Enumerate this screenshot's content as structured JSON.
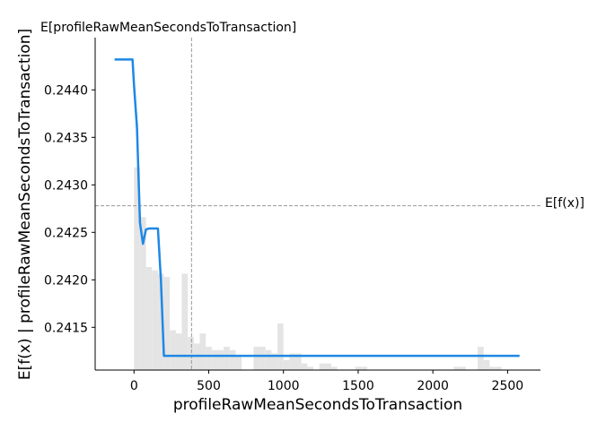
{
  "chart_data": {
    "type": "line",
    "title": "",
    "xlabel": "profileRawMeanSecondsToTransaction",
    "ylabel": "E[f(x) | profileRawMeanSecondsToTransaction]",
    "top_label": "E[profileRawMeanSecondsToTransaction]",
    "expected_value_label": "E[f(x)]",
    "xlim": [
      -260,
      2720
    ],
    "ylim": [
      0.24105,
      0.24455
    ],
    "x_ticks": [
      0,
      500,
      1000,
      1500,
      2000,
      2500
    ],
    "x_tick_labels": [
      "0",
      "500",
      "1000",
      "1500",
      "2000",
      "2500"
    ],
    "y_ticks": [
      0.2415,
      0.242,
      0.2425,
      0.243,
      0.2435,
      0.244
    ],
    "y_tick_labels": [
      "0.2415",
      "0.2420",
      "0.2425",
      "0.2430",
      "0.2435",
      "0.2440"
    ],
    "expected_feature_value": 385,
    "expected_output_value": 0.24278,
    "grid": false,
    "colors": {
      "line": "#1e88e5",
      "histogram": "#e4e4e4",
      "reference": "#999999",
      "axis": "#000000"
    },
    "series": [
      {
        "x": [
          -130,
          -70,
          -10,
          0,
          20,
          40,
          60,
          80,
          100,
          120,
          140,
          160,
          180,
          200,
          220,
          240,
          300,
          400,
          500,
          1000,
          1500,
          2000,
          2580
        ],
        "y": [
          0.24432,
          0.24432,
          0.24432,
          0.24405,
          0.2436,
          0.2426,
          0.24238,
          0.24253,
          0.24254,
          0.24254,
          0.24254,
          0.24254,
          0.242,
          0.2412,
          0.2412,
          0.2412,
          0.2412,
          0.2412,
          0.2412,
          0.2412,
          0.2412,
          0.2412,
          0.2412
        ]
      }
    ],
    "histogram": {
      "bin_starts": [
        0,
        40,
        80,
        120,
        160,
        200,
        240,
        280,
        320,
        360,
        400,
        440,
        480,
        520,
        560,
        600,
        640,
        680,
        800,
        840,
        880,
        920,
        960,
        1000,
        1040,
        1080,
        1120,
        1160,
        1240,
        1280,
        1320,
        1480,
        1520,
        2140,
        2180,
        2300,
        2340,
        2380,
        2420
      ],
      "bin_width": 40,
      "fractions": [
        0.61,
        0.46,
        0.31,
        0.3,
        0.29,
        0.28,
        0.12,
        0.11,
        0.29,
        0.1,
        0.08,
        0.11,
        0.07,
        0.06,
        0.06,
        0.07,
        0.06,
        0.04,
        0.07,
        0.07,
        0.06,
        0.05,
        0.14,
        0.03,
        0.05,
        0.05,
        0.02,
        0.01,
        0.02,
        0.02,
        0.01,
        0.01,
        0.01,
        0.01,
        0.01,
        0.07,
        0.03,
        0.01,
        0.01
      ]
    }
  }
}
